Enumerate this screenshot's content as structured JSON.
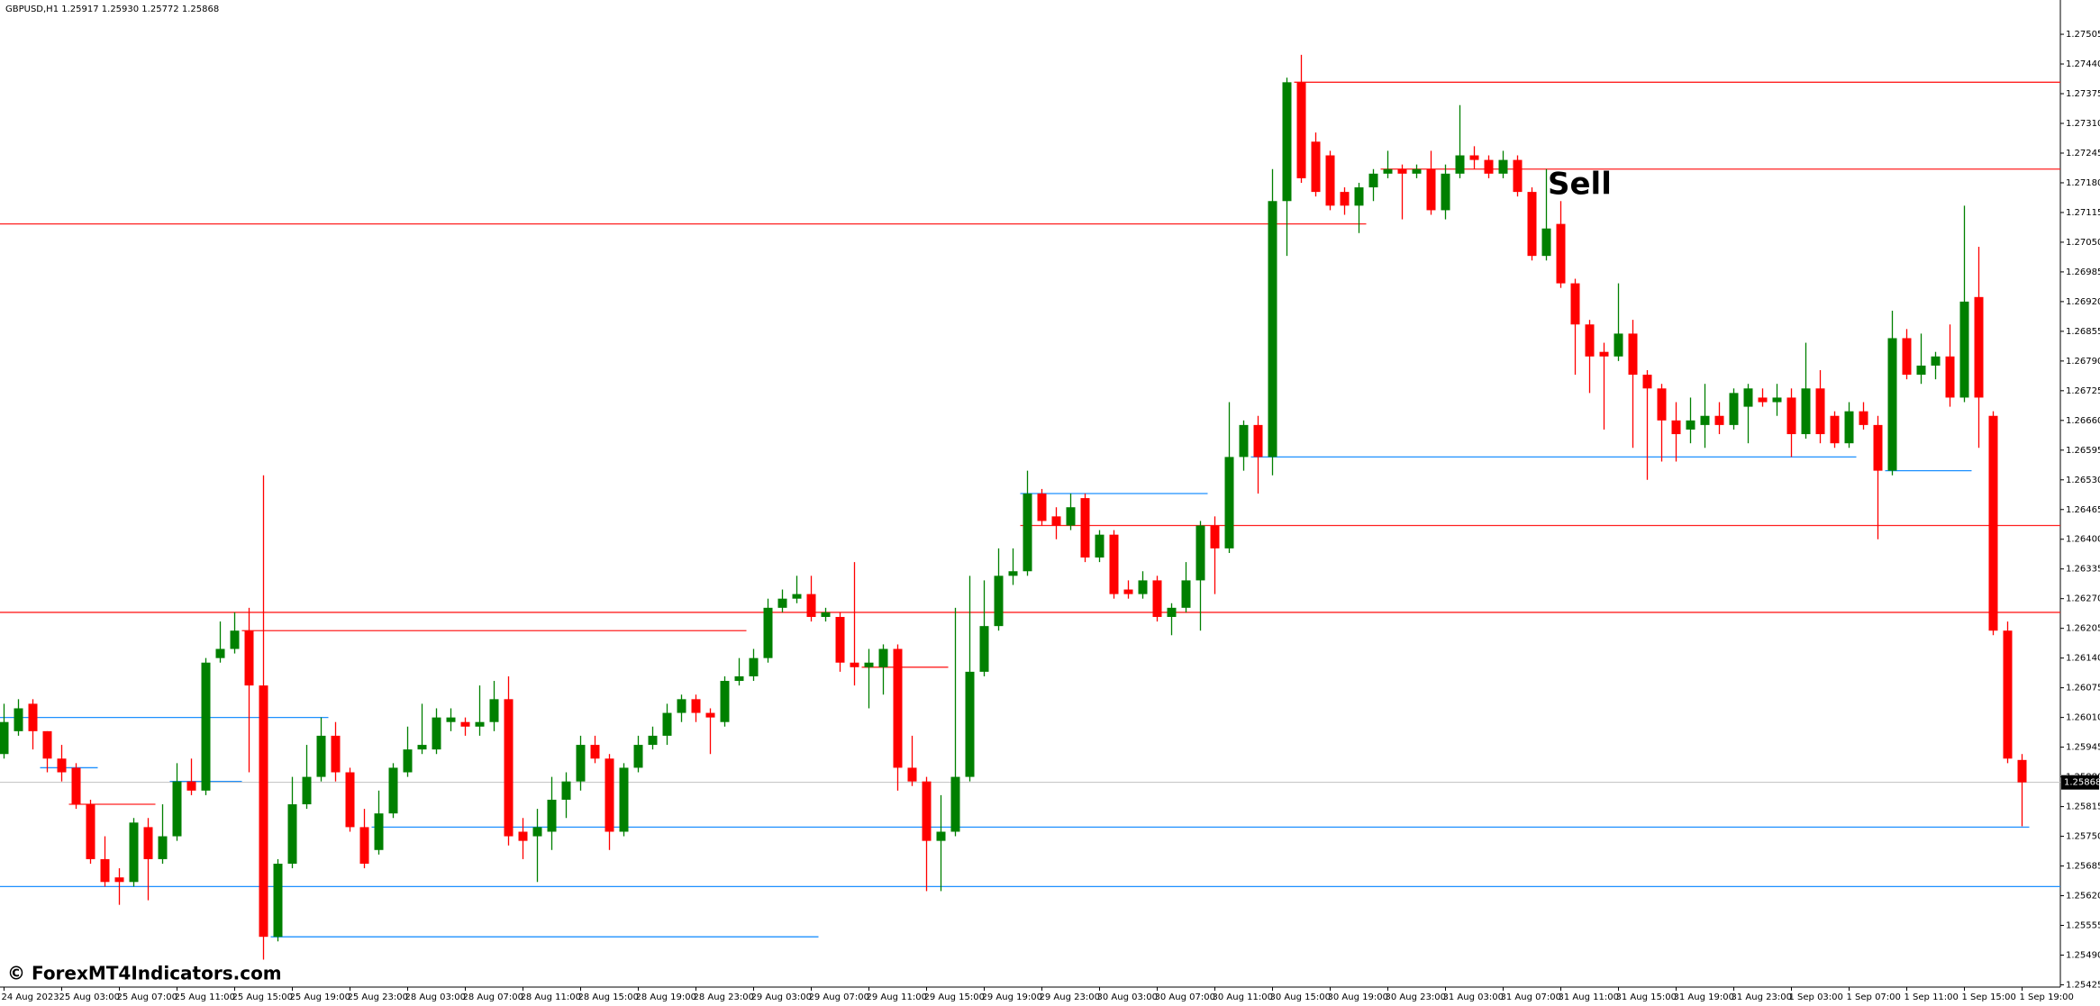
{
  "chart_data": {
    "type": "candlestick",
    "title": "GBPUSD,H1 1.25917 1.25930 1.25772 1.25868",
    "annotation": "Sell",
    "watermark": "© ForexMT4Indicators.com",
    "up_color": "#008000",
    "down_color": "#ff0000",
    "categories": [
      "24 Aug 2023",
      null,
      null,
      null,
      "25 Aug 03:00",
      null,
      null,
      null,
      "25 Aug 07:00",
      null,
      null,
      null,
      "25 Aug 11:00",
      null,
      null,
      null,
      "25 Aug 15:00",
      null,
      null,
      null,
      "25 Aug 19:00",
      null,
      null,
      null,
      "25 Aug 23:00",
      null,
      null,
      null,
      "28 Aug 03:00",
      null,
      null,
      null,
      "28 Aug 07:00",
      null,
      null,
      null,
      "28 Aug 11:00",
      null,
      null,
      null,
      "28 Aug 15:00",
      null,
      null,
      null,
      "28 Aug 19:00",
      null,
      null,
      null,
      "28 Aug 23:00",
      null,
      null,
      null,
      "29 Aug 03:00",
      null,
      null,
      null,
      "29 Aug 07:00",
      null,
      null,
      null,
      "29 Aug 11:00",
      null,
      null,
      null,
      "29 Aug 15:00",
      null,
      null,
      null,
      "29 Aug 19:00",
      null,
      null,
      null,
      "29 Aug 23:00",
      null,
      null,
      null,
      "30 Aug 03:00",
      null,
      null,
      null,
      "30 Aug 07:00",
      null,
      null,
      null,
      "30 Aug 11:00",
      null,
      null,
      null,
      "30 Aug 15:00",
      null,
      null,
      null,
      "30 Aug 19:00",
      null,
      null,
      null,
      "30 Aug 23:00",
      null,
      null,
      null,
      "31 Aug 03:00",
      null,
      null,
      null,
      "31 Aug 07:00",
      null,
      null,
      null,
      "31 Aug 11:00",
      null,
      null,
      null,
      "31 Aug 15:00",
      null,
      null,
      null,
      "31 Aug 19:00",
      null,
      null,
      null,
      "31 Aug 23:00",
      null,
      null,
      null,
      "1 Sep 03:00",
      null,
      null,
      null,
      "1 Sep 07:00",
      null,
      null,
      null,
      "1 Sep 11:00",
      null,
      null,
      null,
      "1 Sep 15:00",
      null,
      null,
      null,
      "1 Sep 19:00"
    ],
    "open": [
      1.2593,
      1.2598,
      1.2604,
      1.2598,
      1.2592,
      1.259,
      1.2582,
      1.257,
      1.2566,
      1.2565,
      1.2577,
      1.257,
      1.2575,
      1.2587,
      1.2585,
      1.2614,
      1.2616,
      1.262,
      1.2608,
      1.2553,
      1.2569,
      1.2582,
      1.2588,
      1.2597,
      1.2589,
      1.2577,
      1.2572,
      1.258,
      1.2589,
      1.2594,
      1.2594,
      1.26,
      1.26,
      1.2599,
      1.26,
      1.2605,
      1.2576,
      1.2575,
      1.2576,
      1.2583,
      1.2587,
      1.2595,
      1.2592,
      1.2576,
      1.259,
      1.2595,
      1.2597,
      1.2602,
      1.2605,
      1.2602,
      1.26,
      1.2609,
      1.261,
      1.2614,
      1.2625,
      1.2627,
      1.2628,
      1.2623,
      1.2623,
      1.2613,
      1.2612,
      1.2612,
      1.2616,
      1.259,
      1.2587,
      1.2574,
      1.2576,
      1.2588,
      1.2611,
      1.2621,
      1.2632,
      1.2633,
      1.265,
      1.2645,
      1.2643,
      1.2649,
      1.2636,
      1.2641,
      1.2629,
      1.2628,
      1.2631,
      1.2623,
      1.2625,
      1.2631,
      1.2643,
      1.2638,
      1.2658,
      1.2665,
      1.2658,
      1.2714,
      1.274,
      1.2727,
      1.2724,
      1.2716,
      1.2713,
      1.2717,
      1.272,
      1.2721,
      1.272,
      1.2721,
      1.2712,
      1.272,
      1.2724,
      1.2723,
      1.272,
      1.2723,
      1.2716,
      1.2702,
      1.2709,
      1.2696,
      1.2687,
      1.2681,
      1.268,
      1.2685,
      1.2676,
      1.2673,
      1.2666,
      1.2664,
      1.2665,
      1.2667,
      1.2665,
      1.2669,
      1.2671,
      1.267,
      1.2671,
      1.2663,
      1.2673,
      1.2667,
      1.2661,
      1.2668,
      1.2665,
      1.2655,
      1.2684,
      1.2676,
      1.2678,
      1.268,
      1.2671,
      1.2693,
      1.2667,
      1.262,
      1.25917
    ],
    "high": [
      1.2604,
      1.2605,
      1.2605,
      1.2598,
      1.2595,
      1.2591,
      1.2583,
      1.2575,
      1.2568,
      1.2579,
      1.2579,
      1.2582,
      1.2591,
      1.2592,
      1.2614,
      1.2622,
      1.2624,
      1.2625,
      1.2654,
      1.257,
      1.2588,
      1.2595,
      1.2601,
      1.26,
      1.259,
      1.2581,
      1.2585,
      1.2591,
      1.2599,
      1.2604,
      1.2603,
      1.2603,
      1.2601,
      1.2608,
      1.2609,
      1.261,
      1.2579,
      1.2581,
      1.2588,
      1.2589,
      1.2597,
      1.2597,
      1.2593,
      1.2591,
      1.2597,
      1.2599,
      1.2604,
      1.2606,
      1.2606,
      1.2603,
      1.261,
      1.2614,
      1.2616,
      1.2627,
      1.2629,
      1.2632,
      1.2632,
      1.2625,
      1.2624,
      1.2635,
      1.2616,
      1.2617,
      1.2617,
      1.2597,
      1.2588,
      1.2584,
      1.2625,
      1.2632,
      1.2631,
      1.2638,
      1.2638,
      1.2655,
      1.2651,
      1.2647,
      1.265,
      1.265,
      1.2642,
      1.2642,
      1.2631,
      1.2633,
      1.2632,
      1.2626,
      1.2635,
      1.2644,
      1.2645,
      1.267,
      1.2666,
      1.2667,
      1.2721,
      1.2741,
      1.2746,
      1.2729,
      1.2725,
      1.2717,
      1.2718,
      1.2721,
      1.2725,
      1.2722,
      1.2722,
      1.2725,
      1.2722,
      1.2735,
      1.2726,
      1.2724,
      1.2725,
      1.2724,
      1.2717,
      1.2721,
      1.2714,
      1.2697,
      1.2688,
      1.2683,
      1.2696,
      1.2688,
      1.2677,
      1.2674,
      1.267,
      1.2671,
      1.2674,
      1.267,
      1.2673,
      1.2674,
      1.2673,
      1.2674,
      1.2673,
      1.2683,
      1.2677,
      1.2668,
      1.267,
      1.267,
      1.2667,
      1.269,
      1.2686,
      1.2685,
      1.2681,
      1.2687,
      1.2713,
      1.2704,
      1.2668,
      1.2622,
      1.2593
    ],
    "low": [
      1.2592,
      1.2597,
      1.2594,
      1.2589,
      1.2587,
      1.2581,
      1.2569,
      1.2564,
      1.256,
      1.2564,
      1.2561,
      1.2569,
      1.2574,
      1.2584,
      1.2584,
      1.2613,
      1.2615,
      1.2589,
      1.2548,
      1.2552,
      1.2568,
      1.2581,
      1.2587,
      1.2587,
      1.2576,
      1.2568,
      1.2571,
      1.2579,
      1.2588,
      1.2593,
      1.2593,
      1.2598,
      1.2597,
      1.2597,
      1.2598,
      1.2573,
      1.257,
      1.2565,
      1.2572,
      1.2579,
      1.2585,
      1.2591,
      1.2572,
      1.2575,
      1.2589,
      1.2594,
      1.2595,
      1.26,
      1.26,
      1.2593,
      1.2599,
      1.2608,
      1.2609,
      1.2613,
      1.2624,
      1.2626,
      1.2622,
      1.2622,
      1.2611,
      1.2608,
      1.2603,
      1.2606,
      1.2585,
      1.2586,
      1.2563,
      1.2563,
      1.2575,
      1.2587,
      1.261,
      1.262,
      1.263,
      1.2632,
      1.2643,
      1.264,
      1.2642,
      1.2635,
      1.2635,
      1.2627,
      1.2627,
      1.2627,
      1.2622,
      1.2619,
      1.2624,
      1.262,
      1.2628,
      1.2637,
      1.2655,
      1.265,
      1.2654,
      1.2702,
      1.2718,
      1.2715,
      1.2712,
      1.2711,
      1.2707,
      1.2714,
      1.2719,
      1.271,
      1.2719,
      1.2711,
      1.271,
      1.2719,
      1.2721,
      1.2719,
      1.2719,
      1.2715,
      1.2701,
      1.2701,
      1.2695,
      1.2676,
      1.2672,
      1.2664,
      1.2679,
      1.266,
      1.2653,
      1.2657,
      1.2657,
      1.2661,
      1.266,
      1.2663,
      1.2664,
      1.2661,
      1.2669,
      1.2667,
      1.2658,
      1.2662,
      1.2661,
      1.266,
      1.266,
      1.2664,
      1.264,
      1.2654,
      1.2675,
      1.2674,
      1.2675,
      1.2669,
      1.267,
      1.266,
      1.2619,
      1.2591,
      1.25772
    ],
    "close": [
      1.26,
      1.2603,
      1.2598,
      1.2592,
      1.2589,
      1.2582,
      1.257,
      1.2565,
      1.2565,
      1.2578,
      1.257,
      1.2575,
      1.2587,
      1.2585,
      1.2613,
      1.2616,
      1.262,
      1.2608,
      1.2553,
      1.2569,
      1.2582,
      1.2588,
      1.2597,
      1.2589,
      1.2577,
      1.2569,
      1.258,
      1.259,
      1.2594,
      1.2595,
      1.2601,
      1.2601,
      1.2599,
      1.26,
      1.2605,
      1.2575,
      1.2574,
      1.2577,
      1.2583,
      1.2587,
      1.2595,
      1.2592,
      1.2576,
      1.259,
      1.2595,
      1.2597,
      1.2602,
      1.2605,
      1.2602,
      1.2601,
      1.2609,
      1.261,
      1.2614,
      1.2625,
      1.2627,
      1.2628,
      1.2623,
      1.2624,
      1.2613,
      1.2612,
      1.2613,
      1.2616,
      1.259,
      1.2587,
      1.2574,
      1.2576,
      1.2588,
      1.2611,
      1.2621,
      1.2632,
      1.2633,
      1.265,
      1.2644,
      1.2643,
      1.2647,
      1.2636,
      1.2641,
      1.2628,
      1.2628,
      1.2631,
      1.2623,
      1.2625,
      1.2631,
      1.2643,
      1.2638,
      1.2658,
      1.2665,
      1.2658,
      1.2714,
      1.274,
      1.2719,
      1.2716,
      1.2713,
      1.2713,
      1.2717,
      1.272,
      1.2721,
      1.272,
      1.2721,
      1.2712,
      1.272,
      1.2724,
      1.2723,
      1.272,
      1.2723,
      1.2716,
      1.2702,
      1.2708,
      1.2696,
      1.2687,
      1.268,
      1.268,
      1.2685,
      1.2676,
      1.2673,
      1.2666,
      1.2663,
      1.2666,
      1.2667,
      1.2665,
      1.2672,
      1.2673,
      1.267,
      1.2671,
      1.2663,
      1.2673,
      1.2663,
      1.2661,
      1.2668,
      1.2665,
      1.2655,
      1.2684,
      1.2676,
      1.2678,
      1.268,
      1.2671,
      1.2692,
      1.2671,
      1.262,
      1.2592,
      1.25868
    ],
    "levels": [
      {
        "price": 1.274,
        "color": "#ff2020",
        "from": 90
      },
      {
        "price": 1.2721,
        "color": "#ff2020",
        "from": 96
      },
      {
        "price": 1.2709,
        "color": "#ff2020",
        "to": 94
      },
      {
        "price": 1.2643,
        "color": "#ff2020",
        "from": 71
      },
      {
        "price": 1.2624,
        "color": "#ff2020"
      },
      {
        "price": 1.262,
        "color": "#ff2020",
        "from": 17,
        "to": 51
      },
      {
        "price": 1.2612,
        "color": "#ff2020",
        "from": 60,
        "to": 65
      },
      {
        "price": 1.2582,
        "color": "#ff2020",
        "from": 5,
        "to": 10
      },
      {
        "price": 1.2658,
        "color": "#1e90ff",
        "from": 87,
        "to": 128
      },
      {
        "price": 1.2655,
        "color": "#1e90ff",
        "from": 131,
        "to": 136
      },
      {
        "price": 1.265,
        "color": "#1e90ff",
        "from": 71,
        "to": 83
      },
      {
        "price": 1.2601,
        "color": "#1e90ff",
        "to": 22
      },
      {
        "price": 1.259,
        "color": "#1e90ff",
        "from": 3,
        "to": 6
      },
      {
        "price": 1.2587,
        "color": "#1e90ff",
        "from": 12,
        "to": 16
      },
      {
        "price": 1.2577,
        "color": "#1e90ff",
        "from": 26,
        "to": 140
      },
      {
        "price": 1.2564,
        "color": "#1e90ff"
      },
      {
        "price": 1.2553,
        "color": "#1e90ff",
        "from": 19,
        "to": 56
      }
    ],
    "current_price": 1.25868,
    "ylim": [
      1.2542,
      1.2758
    ],
    "yticks": [
      1.27505,
      {
        "value": 1.2744,
        "label": "1.27440"
      },
      1.27375,
      {
        "value": 1.2731,
        "label": "1.27310"
      },
      1.27245,
      {
        "value": 1.2718,
        "label": "1.27180"
      },
      1.27115,
      {
        "value": 1.2705,
        "label": "1.27050"
      },
      1.26985,
      {
        "value": 1.2692,
        "label": "1.26920"
      },
      1.26855,
      {
        "value": 1.2679,
        "label": "1.26790"
      },
      1.26725,
      {
        "value": 1.2666,
        "label": "1.26660"
      },
      1.26595,
      {
        "value": 1.2653,
        "label": "1.26530"
      },
      1.26465,
      {
        "value": 1.264,
        "label": "1.26400"
      },
      1.26335,
      {
        "value": 1.2627,
        "label": "1.26270"
      },
      1.26205,
      {
        "value": 1.2614,
        "label": "1.26140"
      },
      1.26075,
      {
        "value": 1.2601,
        "label": "1.26010"
      },
      1.25945,
      {
        "value": 1.2588,
        "label": "1.25880"
      },
      1.25815,
      {
        "value": 1.2575,
        "label": "1.25750"
      },
      1.25685,
      {
        "value": 1.2562,
        "label": "1.25620"
      },
      1.25555,
      {
        "value": 1.2549,
        "label": "1.25490"
      },
      1.25425
    ]
  }
}
